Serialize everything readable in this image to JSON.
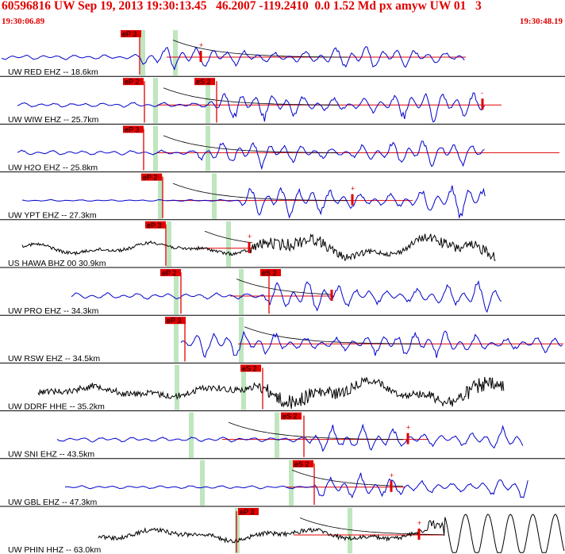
{
  "header": {
    "title": "60596816 UW Sep 19, 2013 19:30:13.45   46.2007 -119.2410  0.0 1.52 Md px amyw UW 01   3",
    "time_start": "19:30:06.89",
    "time_end": "19:30:48.19"
  },
  "colors": {
    "header_text": "#e00000",
    "trace_blue": "#0000cc",
    "trace_black": "#000000",
    "pick_red": "#e00000",
    "window_green": "#bfe6bf",
    "separator": "#000000"
  },
  "traces": [
    {
      "label": "UW RED EHZ -- 18.6km",
      "color": "blue",
      "picks": [
        "eP 3"
      ],
      "end_mark": "+"
    },
    {
      "label": "UW WIW EHZ -- 25.7km",
      "color": "blue",
      "picks": [
        "eP 2",
        "eS 2"
      ],
      "end_mark": "-"
    },
    {
      "label": "UW H2O EHZ -- 25.8km",
      "color": "blue",
      "picks": [
        "eP 3"
      ],
      "end_mark": ""
    },
    {
      "label": "UW YPT EHZ -- 27.3km",
      "color": "blue",
      "picks": [
        "eP 2"
      ],
      "end_mark": "+"
    },
    {
      "label": "US HAWA BHZ 00 30.9km",
      "color": "black",
      "picks": [
        "eP 3"
      ],
      "end_mark": "+"
    },
    {
      "label": "UW PRO EHZ -- 34.3km",
      "color": "blue",
      "picks": [
        "eP 2",
        "eS 2"
      ],
      "end_mark": ""
    },
    {
      "label": "UW RSW EHZ -- 34.5km",
      "color": "blue",
      "picks": [
        "eP 3"
      ],
      "end_mark": ""
    },
    {
      "label": "UW DDRF HHE -- 35.2km",
      "color": "black",
      "picks": [
        "eS 2"
      ],
      "end_mark": ""
    },
    {
      "label": "UW SNI EHZ -- 43.5km",
      "color": "blue",
      "picks": [
        "eS 2"
      ],
      "end_mark": "+"
    },
    {
      "label": "UW GBL EHZ -- 47.3km",
      "color": "blue",
      "picks": [
        "eS 2"
      ],
      "end_mark": "+"
    },
    {
      "label": "UW PHIN HHZ -- 63.0km",
      "color": "black",
      "picks": [
        "eP 3"
      ],
      "end_mark": "+"
    }
  ]
}
